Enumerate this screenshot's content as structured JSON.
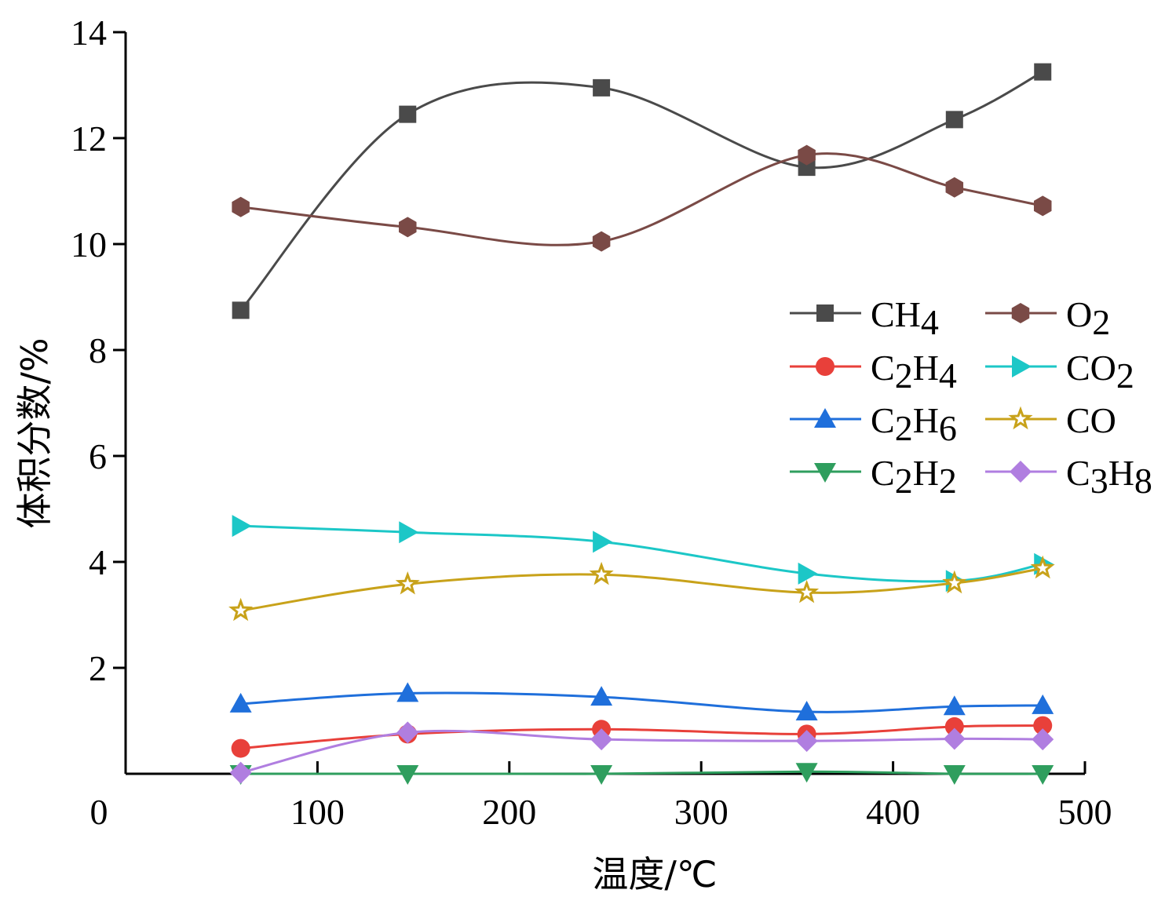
{
  "chart_data": {
    "type": "line",
    "title": "",
    "xlabel": "温度/℃",
    "ylabel": "体积分数/%",
    "xlim": [
      0,
      500
    ],
    "ylim": [
      0,
      14
    ],
    "xticks": [
      0,
      100,
      200,
      300,
      400,
      500
    ],
    "yticks": [
      2,
      4,
      6,
      8,
      10,
      12,
      14
    ],
    "xtick_labels": [
      "0",
      "100",
      "200",
      "300",
      "400",
      "500"
    ],
    "ytick_labels": [
      "2",
      "4",
      "6",
      "8",
      "10",
      "12",
      "14"
    ],
    "x": [
      60,
      147,
      248,
      355,
      432,
      478
    ],
    "grid": false,
    "legend_position": "right",
    "series": [
      {
        "name": "CH4",
        "label_main": "CH",
        "label_sub": "4",
        "label_tail": "",
        "color": "#4a4a4a",
        "marker": "square",
        "values": [
          8.75,
          12.45,
          12.95,
          11.45,
          12.35,
          13.25
        ]
      },
      {
        "name": "C2H4",
        "label_main": "C",
        "label_sub": "2",
        "label_tail": "H",
        "label_sub2": "4",
        "color": "#e8403a",
        "marker": "circle",
        "values": [
          0.48,
          0.75,
          0.84,
          0.75,
          0.89,
          0.91
        ]
      },
      {
        "name": "C2H6",
        "label_main": "C",
        "label_sub": "2",
        "label_tail": "H",
        "label_sub2": "6",
        "color": "#1f6fdb",
        "marker": "triangle-up",
        "values": [
          1.32,
          1.52,
          1.45,
          1.17,
          1.27,
          1.29
        ]
      },
      {
        "name": "C2H2",
        "label_main": "C",
        "label_sub": "2",
        "label_tail": "H",
        "label_sub2": "2",
        "color": "#2f9e5e",
        "marker": "triangle-down",
        "values": [
          0.0,
          0.0,
          0.0,
          0.04,
          0.0,
          0.0
        ]
      },
      {
        "name": "O2",
        "label_main": "O",
        "label_sub": "2",
        "label_tail": "",
        "color": "#7a4a46",
        "marker": "hexagon",
        "values": [
          10.7,
          10.32,
          10.05,
          11.68,
          11.07,
          10.72
        ]
      },
      {
        "name": "CO2",
        "label_main": "CO",
        "label_sub": "2",
        "label_tail": "",
        "color": "#1cc7c7",
        "marker": "triangle-right",
        "values": [
          4.68,
          4.56,
          4.38,
          3.78,
          3.64,
          3.96
        ]
      },
      {
        "name": "CO",
        "label_main": "CO",
        "label_sub": "",
        "label_tail": "",
        "color": "#c8a21a",
        "marker": "star",
        "values": [
          3.08,
          3.58,
          3.76,
          3.42,
          3.6,
          3.88
        ]
      },
      {
        "name": "C3H8",
        "label_main": "C",
        "label_sub": "3",
        "label_tail": "H",
        "label_sub2": "8",
        "color": "#b07ee0",
        "marker": "diamond",
        "values": [
          0.02,
          0.78,
          0.65,
          0.62,
          0.66,
          0.65
        ]
      }
    ]
  }
}
